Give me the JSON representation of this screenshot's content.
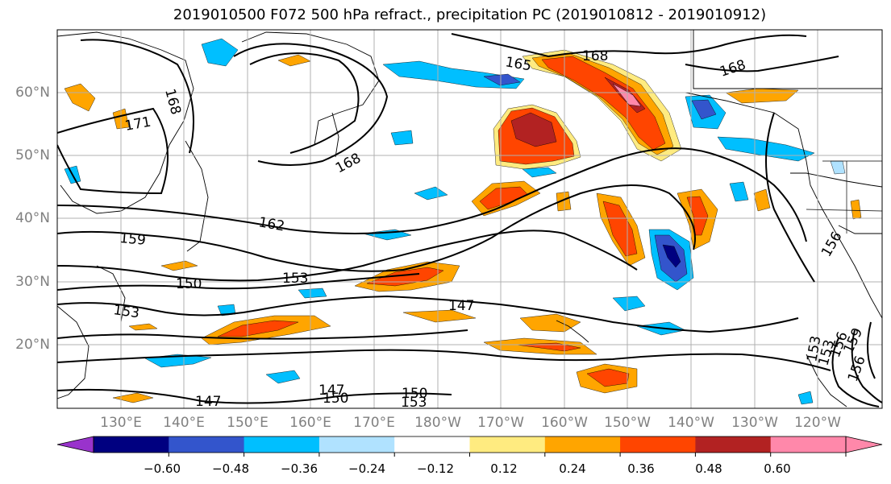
{
  "title": "2019010500 F072 500 hPa refract., precipitation PC (2019010812 - 2019010912)",
  "lat_labels": [
    "60°N",
    "50°N",
    "40°N",
    "30°N",
    "20°N"
  ],
  "lon_labels": [
    "130°E",
    "140°E",
    "150°E",
    "160°E",
    "170°E",
    "180°W",
    "170°W",
    "160°W",
    "150°W",
    "140°W",
    "130°W",
    "120°W"
  ],
  "contour_labels": [
    "168",
    "171",
    "168",
    "165",
    "168",
    "168",
    "162",
    "159",
    "150",
    "153",
    "153",
    "147",
    "147",
    "150",
    "147",
    "153",
    "150",
    "153",
    "153",
    "156",
    "159",
    "156",
    "156"
  ],
  "colorbar": {
    "tick_labels": [
      "−0.60",
      "−0.48",
      "−0.36",
      "−0.24",
      "−0.12",
      "0.12",
      "0.24",
      "0.36",
      "0.48",
      "0.60"
    ],
    "colors": [
      "#9933cc",
      "#000080",
      "#3355cc",
      "#00bfff",
      "#b0e2ff",
      "#ffffff",
      "#ffeb80",
      "#ffa500",
      "#ff4500",
      "#b22222",
      "#ff88aa",
      "#ff88aa"
    ]
  },
  "palette": {
    "neg1": "#3355cc",
    "neg2": "#00bfff",
    "neg3": "#b0e2ff",
    "pos1": "#ffeb80",
    "pos2": "#ffa500",
    "pos3": "#ff4500",
    "pos4": "#b22222",
    "pos5": "#ff88aa"
  }
}
